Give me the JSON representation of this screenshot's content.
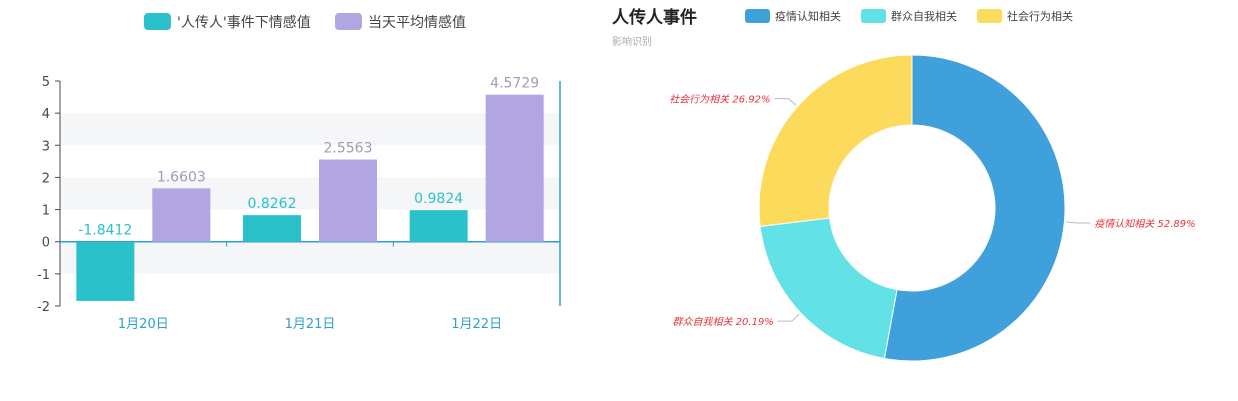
{
  "chart_data": [
    {
      "type": "bar",
      "categories": [
        "1月20日",
        "1月21日",
        "1月22日"
      ],
      "series": [
        {
          "name": "'人传人'事件下情感值",
          "values": [
            -1.8412,
            0.8262,
            0.9824
          ],
          "color": "#2ac1cb"
        },
        {
          "name": "当天平均情感值",
          "values": [
            1.6603,
            2.5563,
            4.5729
          ],
          "color": "#b1a6e2"
        }
      ],
      "ylim": [
        -2,
        5
      ],
      "yticks": [
        "-2",
        "-1",
        "0",
        "1",
        "2",
        "3",
        "4",
        "5"
      ],
      "legend": "top-center",
      "grid": "horizontal bands"
    },
    {
      "type": "pie",
      "title": "人传人事件",
      "subtitle": "影响识别",
      "slices": [
        {
          "name": "疫情认知相关",
          "value": 52.89,
          "label": "疫情认知相关 52.89%",
          "color": "#3fa0dc"
        },
        {
          "name": "群众自我相关",
          "value": 20.19,
          "label": "群众自我相关 20.19%",
          "color": "#62e1e6"
        },
        {
          "name": "社会行为相关",
          "value": 26.92,
          "label": "社会行为相关 26.92%",
          "color": "#fcda5c"
        }
      ],
      "legend": "top"
    }
  ]
}
